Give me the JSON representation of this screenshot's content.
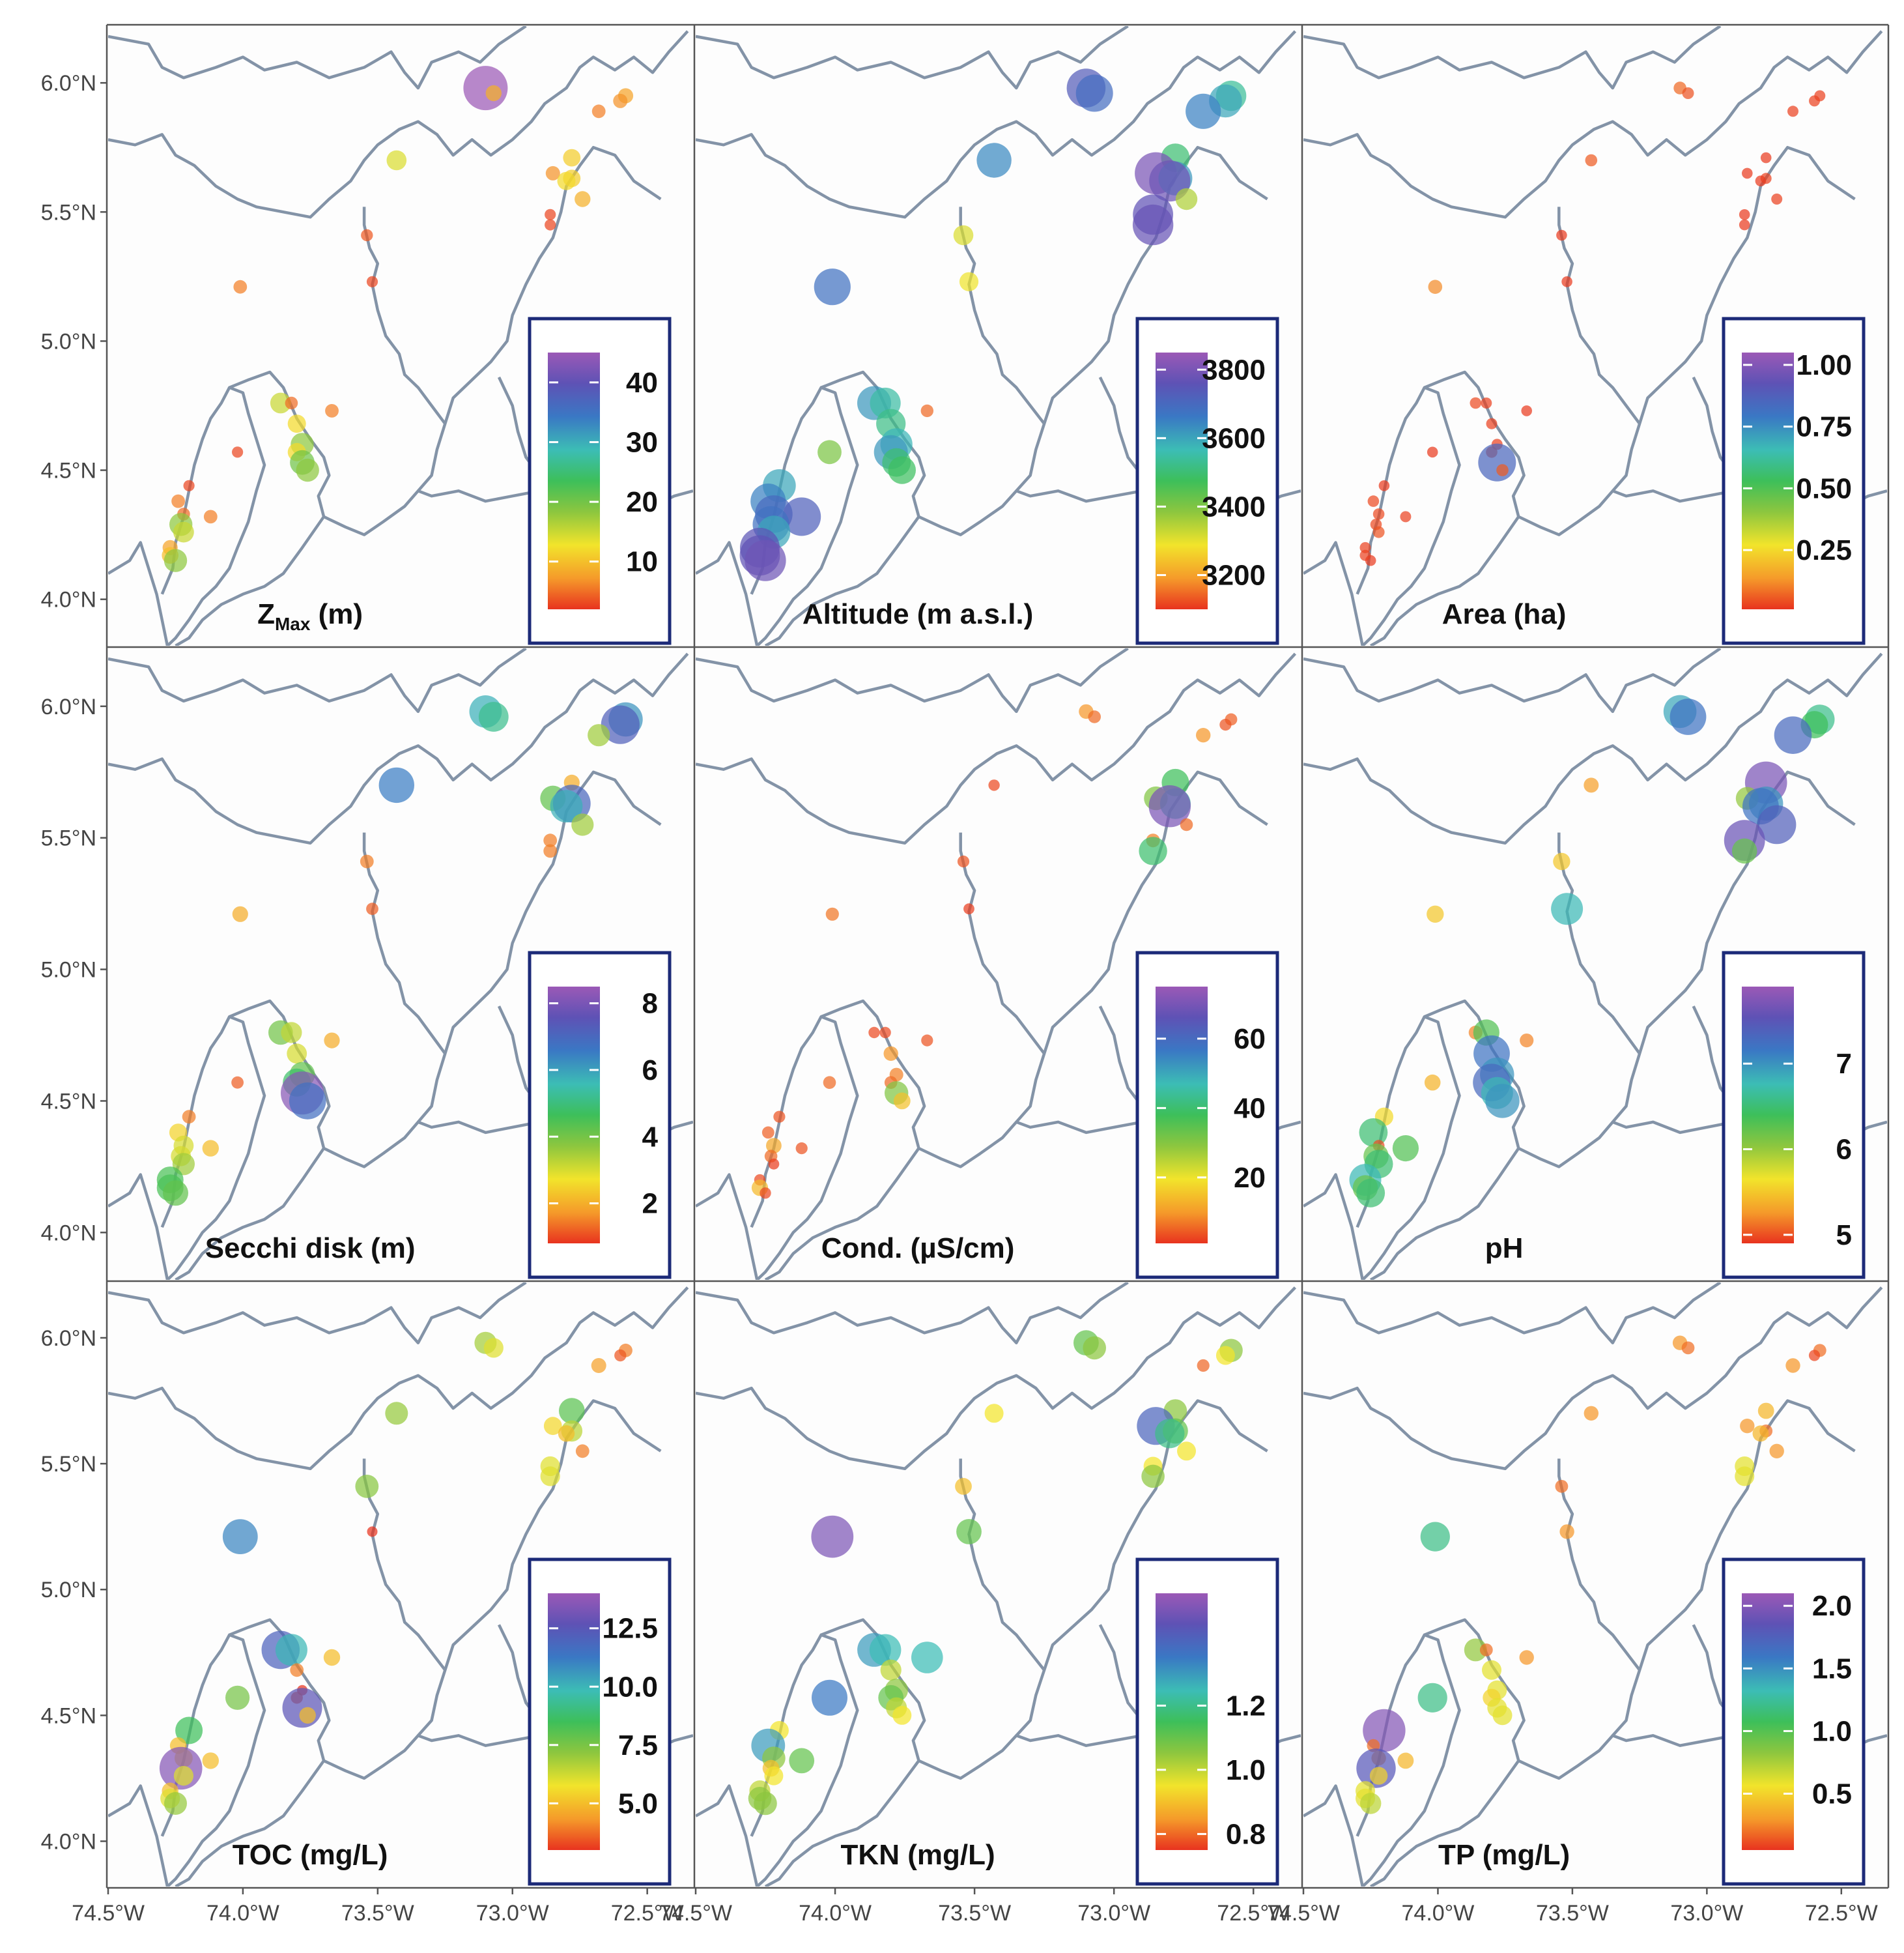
{
  "figure": {
    "colorscale": [
      "#e8331f",
      "#f59a2a",
      "#f2e42b",
      "#8cc63f",
      "#3dbf5a",
      "#3cbdb5",
      "#3a78c4",
      "#5e52b5",
      "#9b59b6"
    ],
    "border_color": "#8393a7",
    "legend_frame_color": "#1c2a78",
    "x_ticks": [
      "74.5°W",
      "74.0°W",
      "73.5°W",
      "73.0°W",
      "72.5°W"
    ],
    "y_ticks": [
      "6.0°N",
      "5.5°N",
      "5.0°N",
      "4.5°N",
      "4.0°N"
    ]
  },
  "panels": [
    {
      "id": "zmax",
      "label_main": "Z",
      "label_sub": "Max",
      "label_tail": " (m)",
      "legend_ticks": [
        "40",
        "30",
        "20",
        "10"
      ]
    },
    {
      "id": "altitude",
      "label": "Altitude (m a.s.l.)",
      "legend_ticks": [
        "3800",
        "3600",
        "3400",
        "3200"
      ]
    },
    {
      "id": "area",
      "label": "Area (ha)",
      "legend_ticks": [
        "1.00",
        "0.75",
        "0.50",
        "0.25"
      ]
    },
    {
      "id": "secchi",
      "label": "Secchi disk (m)",
      "legend_ticks": [
        "8",
        "6",
        "4",
        "2"
      ]
    },
    {
      "id": "cond",
      "label": "Cond. (µS/cm)",
      "legend_ticks": [
        "60",
        "40",
        "20"
      ]
    },
    {
      "id": "ph",
      "label": "pH",
      "legend_ticks": [
        "7",
        "6",
        "5"
      ]
    },
    {
      "id": "toc",
      "label": "TOC (mg/L)",
      "legend_ticks": [
        "12.5",
        "10.0",
        "7.5",
        "5.0"
      ]
    },
    {
      "id": "tkn",
      "label": "TKN (mg/L)",
      "legend_ticks": [
        "1.2",
        "1.0",
        "0.8"
      ]
    },
    {
      "id": "tp",
      "label": "TP (mg/L)",
      "legend_ticks": [
        "2.0",
        "1.5",
        "1.0",
        "0.5"
      ]
    }
  ],
  "lakes": [
    {
      "lon": -73.1,
      "lat": 5.98,
      "zmax": 45,
      "altitude": 3730,
      "area": 0.08,
      "secchi": 5.8,
      "cond": 10,
      "ph": 6.9,
      "toc": 6.8,
      "tkn": 1.1,
      "tp": 0.3
    },
    {
      "lon": -73.07,
      "lat": 5.96,
      "zmax": 9,
      "altitude": 3690,
      "area": 0.05,
      "secchi": 5.2,
      "cond": 6,
      "ph": 7.2,
      "toc": 6.0,
      "tkn": 1.05,
      "tp": 0.2
    },
    {
      "lon": -72.58,
      "lat": 5.95,
      "zmax": 8,
      "altitude": 3540,
      "area": 0.03,
      "secchi": 6.2,
      "cond": 5,
      "ph": 6.6,
      "toc": 4.0,
      "tkn": 1.05,
      "tp": 0.2
    },
    {
      "lon": -72.6,
      "lat": 5.93,
      "zmax": 7,
      "altitude": 3600,
      "area": 0.03,
      "secchi": 7.2,
      "cond": 4,
      "ph": 6.4,
      "toc": 3.5,
      "tkn": 0.95,
      "tp": 0.1
    },
    {
      "lon": -72.68,
      "lat": 5.89,
      "zmax": 6,
      "altitude": 3650,
      "area": 0.03,
      "secchi": 3.5,
      "cond": 10,
      "ph": 7.3,
      "toc": 4.5,
      "tkn": 0.8,
      "tp": 0.3
    },
    {
      "lon": -73.43,
      "lat": 5.7,
      "zmax": 14,
      "altitude": 3640,
      "area": 0.06,
      "secchi": 6.5,
      "cond": 3,
      "ph": 5.3,
      "toc": 7.0,
      "tkn": 0.95,
      "tp": 0.3
    },
    {
      "lon": -72.78,
      "lat": 5.71,
      "zmax": 11,
      "altitude": 3500,
      "area": 0.02,
      "secchi": 2.0,
      "cond": 38,
      "ph": 7.7,
      "toc": 8.0,
      "tkn": 1.05,
      "tp": 0.4
    },
    {
      "lon": -72.85,
      "lat": 5.65,
      "zmax": 7,
      "altitude": 3800,
      "area": 0.02,
      "secchi": 4.2,
      "cond": 30,
      "ph": 6.0,
      "toc": 5.5,
      "tkn": 1.4,
      "tp": 0.3
    },
    {
      "lon": -72.78,
      "lat": 5.63,
      "zmax": 11,
      "altitude": 3620,
      "area": 0.03,
      "secchi": 7.0,
      "cond": 45,
      "ph": 7.0,
      "toc": 6.5,
      "tkn": 1.1,
      "tp": 0.2
    },
    {
      "lon": -72.8,
      "lat": 5.62,
      "zmax": 12,
      "altitude": 3780,
      "area": 0.02,
      "secchi": 5.8,
      "cond": 70,
      "ph": 7.2,
      "toc": 5.0,
      "tkn": 1.2,
      "tp": 0.4
    },
    {
      "lon": -72.74,
      "lat": 5.55,
      "zmax": 9,
      "altitude": 3350,
      "area": 0.03,
      "secchi": 3.5,
      "cond": 6,
      "ph": 7.4,
      "toc": 4.0,
      "tkn": 0.95,
      "tp": 0.3
    },
    {
      "lon": -72.86,
      "lat": 5.49,
      "zmax": 3,
      "altitude": 3760,
      "area": 0.02,
      "secchi": 1.5,
      "cond": 8,
      "ph": 7.6,
      "toc": 6.0,
      "tkn": 0.95,
      "tp": 0.6
    },
    {
      "lon": -72.86,
      "lat": 5.45,
      "zmax": 3,
      "altitude": 3770,
      "area": 0.02,
      "secchi": 1.5,
      "cond": 40,
      "ph": 6.2,
      "toc": 6.0,
      "tkn": 1.05,
      "tp": 0.6
    },
    {
      "lon": -73.54,
      "lat": 5.41,
      "zmax": 4,
      "altitude": 3310,
      "area": 0.02,
      "secchi": 1.5,
      "cond": 4,
      "ph": 5.5,
      "toc": 7.2,
      "tkn": 0.9,
      "tp": 0.2
    },
    {
      "lon": -73.52,
      "lat": 5.23,
      "zmax": 3,
      "altitude": 3290,
      "area": 0.02,
      "secchi": 1.2,
      "cond": 2,
      "ph": 6.8,
      "toc": 3.0,
      "tkn": 1.1,
      "tp": 0.3
    },
    {
      "lon": -74.01,
      "lat": 5.21,
      "zmax": 6,
      "altitude": 3680,
      "area": 0.12,
      "secchi": 2.0,
      "cond": 7,
      "ph": 5.5,
      "toc": 11.0,
      "tkn": 1.5,
      "tp": 1.2
    },
    {
      "lon": -73.86,
      "lat": 4.76,
      "zmax": 15,
      "altitude": 3620,
      "area": 0.04,
      "secchi": 4.0,
      "cond": 3,
      "ph": 5.2,
      "toc": 12.0,
      "tkn": 1.3,
      "tp": 0.8
    },
    {
      "lon": -73.82,
      "lat": 4.76,
      "zmax": 5,
      "altitude": 3550,
      "area": 0.03,
      "secchi": 3.2,
      "cond": 3,
      "ph": 6.3,
      "toc": 10.0,
      "tkn": 1.25,
      "tp": 0.2
    },
    {
      "lon": -73.67,
      "lat": 4.73,
      "zmax": 6,
      "altitude": 3150,
      "area": 0.02,
      "secchi": 2.0,
      "cond": 4,
      "ph": 5.2,
      "toc": 5.0,
      "tkn": 1.25,
      "tp": 0.3
    },
    {
      "lon": -73.8,
      "lat": 4.68,
      "zmax": 12,
      "altitude": 3520,
      "area": 0.03,
      "secchi": 3.0,
      "cond": 10,
      "ph": 7.2,
      "toc": 4.0,
      "tkn": 1.0,
      "tp": 0.6
    },
    {
      "lon": -73.78,
      "lat": 4.6,
      "zmax": 18,
      "altitude": 3580,
      "area": 0.03,
      "secchi": 4.2,
      "cond": 8,
      "ph": 7.0,
      "toc": 3.0,
      "tkn": 1.05,
      "tp": 0.6
    },
    {
      "lon": -73.8,
      "lat": 4.57,
      "zmax": 12,
      "altitude": 3620,
      "area": 0.04,
      "secchi": 4.8,
      "cond": 6,
      "ph": 7.3,
      "toc": 3.5,
      "tkn": 1.1,
      "tp": 0.5
    },
    {
      "lon": -73.78,
      "lat": 4.53,
      "zmax": 20,
      "altitude": 3500,
      "area": 0.85,
      "secchi": 8.2,
      "cond": 30,
      "ph": 6.8,
      "toc": 12.5,
      "tkn": 1.0,
      "tp": 0.6
    },
    {
      "lon": -73.76,
      "lat": 4.5,
      "zmax": 18,
      "altitude": 3480,
      "area": 0.06,
      "secchi": 6.8,
      "cond": 15,
      "ph": 7.0,
      "toc": 5.0,
      "tkn": 0.95,
      "tp": 0.6
    },
    {
      "lon": -74.02,
      "lat": 4.57,
      "zmax": 3,
      "altitude": 3400,
      "area": 0.02,
      "secchi": 1.2,
      "cond": 6,
      "ph": 5.4,
      "toc": 7.5,
      "tkn": 1.35,
      "tp": 1.2
    },
    {
      "lon": -74.2,
      "lat": 4.44,
      "zmax": 3,
      "altitude": 3600,
      "area": 0.02,
      "secchi": 1.5,
      "cond": 4,
      "ph": 5.6,
      "toc": 8.5,
      "tkn": 0.95,
      "tp": 2.0
    },
    {
      "lon": -74.24,
      "lat": 4.38,
      "zmax": 6,
      "altitude": 3650,
      "area": 0.04,
      "secchi": 2.5,
      "cond": 5,
      "ph": 6.5,
      "toc": 5.0,
      "tkn": 1.3,
      "tp": 0.2
    },
    {
      "lon": -74.22,
      "lat": 4.33,
      "zmax": 5,
      "altitude": 3700,
      "area": 0.04,
      "secchi": 3.0,
      "cond": 12,
      "ph": 5.0,
      "toc": 5.5,
      "tkn": 1.05,
      "tp": 0.3
    },
    {
      "lon": -74.12,
      "lat": 4.32,
      "zmax": 6,
      "altitude": 3720,
      "area": 0.03,
      "secchi": 2.2,
      "cond": 4,
      "ph": 6.3,
      "toc": 5.0,
      "tkn": 1.1,
      "tp": 0.4
    },
    {
      "lon": -74.23,
      "lat": 4.29,
      "zmax": 18,
      "altitude": 3680,
      "area": 0.04,
      "secchi": 3.0,
      "cond": 6,
      "ph": 6.2,
      "toc": 13.5,
      "tkn": 0.9,
      "tp": 1.8
    },
    {
      "lon": -74.22,
      "lat": 4.26,
      "zmax": 15,
      "altitude": 3600,
      "area": 0.05,
      "secchi": 3.5,
      "cond": 2,
      "ph": 6.5,
      "toc": 6.0,
      "tkn": 0.95,
      "tp": 0.5
    },
    {
      "lon": -74.27,
      "lat": 4.2,
      "zmax": 8,
      "altitude": 3750,
      "area": 0.03,
      "secchi": 4.5,
      "cond": 3,
      "ph": 6.8,
      "toc": 5.0,
      "tkn": 1.0,
      "tp": 0.6
    },
    {
      "lon": -74.27,
      "lat": 4.17,
      "zmax": 10,
      "altitude": 3760,
      "area": 0.03,
      "secchi": 4.5,
      "cond": 14,
      "ph": 6.2,
      "toc": 6.0,
      "tkn": 1.05,
      "tp": 0.6
    },
    {
      "lon": -74.25,
      "lat": 4.15,
      "zmax": 18,
      "altitude": 3780,
      "area": 0.02,
      "secchi": 4.2,
      "cond": 3,
      "ph": 6.5,
      "toc": 7.0,
      "tkn": 1.05,
      "tp": 0.7
    }
  ]
}
